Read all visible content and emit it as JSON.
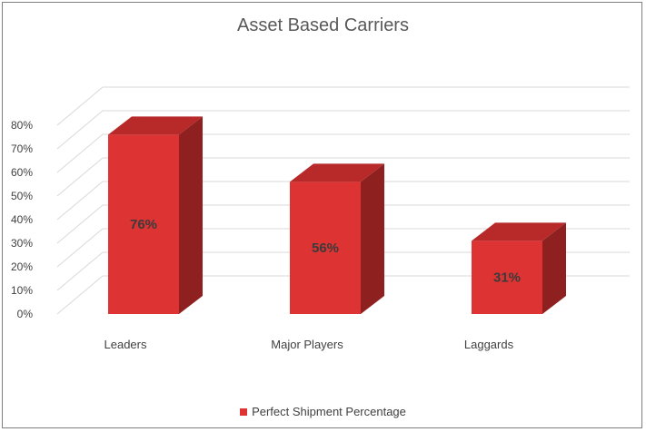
{
  "chart_data": {
    "type": "bar",
    "title": "Asset Based Carriers",
    "categories": [
      "Leaders",
      "Major Players",
      "Laggards"
    ],
    "series": [
      {
        "name": "Perfect Shipment Percentage",
        "values": [
          76,
          56,
          31
        ]
      }
    ],
    "data_labels": [
      "76%",
      "56%",
      "31%"
    ],
    "y_ticks": [
      "0%",
      "10%",
      "20%",
      "30%",
      "40%",
      "50%",
      "60%",
      "70%",
      "80%"
    ],
    "ylim": [
      0,
      80
    ],
    "grid": true,
    "three_d": true,
    "legend_position": "bottom",
    "colors": {
      "front": "#dd3333",
      "top": "#b82a2a",
      "side": "#8e2020"
    }
  }
}
